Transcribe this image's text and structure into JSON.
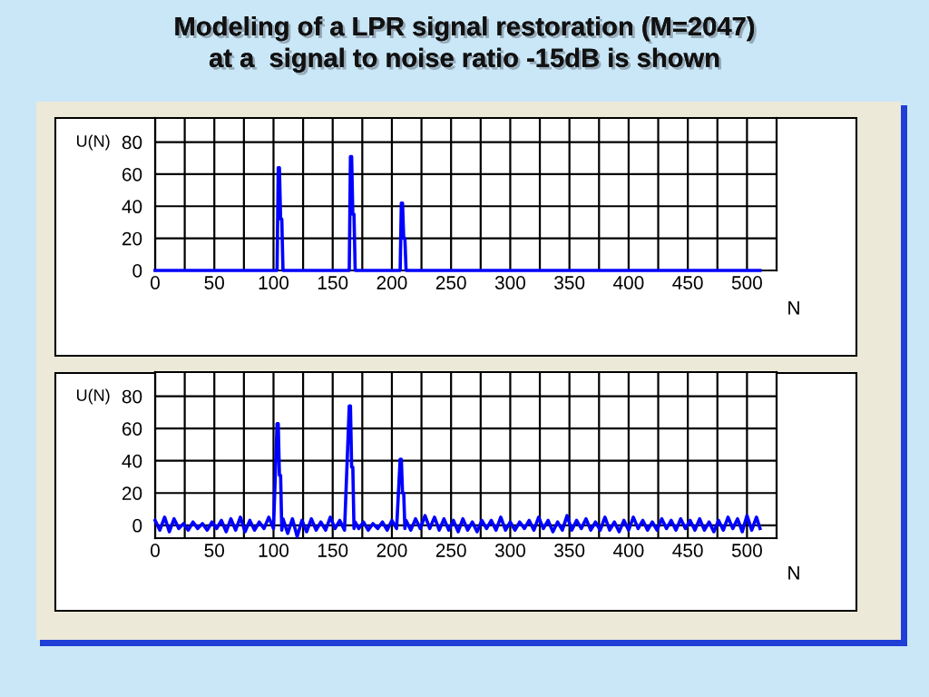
{
  "chart_data": [
    {
      "type": "line",
      "title": "Modeling of a LPR signal restoration (M=2047)\nat a  signal to noise ratio -15dB is shown",
      "xlabel": "N",
      "ylabel": "U(N)",
      "grid": true,
      "line_style": "solid",
      "xlim": [
        0,
        525
      ],
      "xticks": [
        0,
        {
          "value": 25,
          "label": null
        },
        50,
        {
          "value": 75,
          "label": null
        },
        100,
        {
          "value": 125,
          "label": null
        },
        150,
        {
          "value": 175,
          "label": null
        },
        200,
        {
          "value": 225,
          "label": null
        },
        250,
        {
          "value": 275,
          "label": null
        },
        300,
        {
          "value": 325,
          "label": null
        },
        350,
        {
          "value": 375,
          "label": null
        },
        400,
        {
          "value": 425,
          "label": null
        },
        450,
        {
          "value": 475,
          "label": null
        },
        500
      ],
      "ylim": [
        0,
        95
      ],
      "yticks": [
        0,
        20,
        40,
        60,
        80
      ],
      "series": [
        {
          "color": "#0000ff",
          "x": [
            0,
            103,
            104,
            105,
            106,
            107,
            108,
            164,
            165,
            166,
            167,
            168,
            169,
            207,
            208,
            209,
            210,
            211,
            212,
            511
          ],
          "values": [
            0,
            0,
            64,
            64,
            32,
            32,
            0,
            0,
            71,
            71,
            35,
            35,
            0,
            0,
            42,
            42,
            20,
            20,
            0,
            0
          ]
        }
      ]
    },
    {
      "type": "line",
      "xlabel": "N",
      "ylabel": "U(N)",
      "grid": true,
      "line_style": "solid",
      "xlim": [
        0,
        525
      ],
      "xticks": [
        0,
        {
          "value": 25,
          "label": null
        },
        50,
        {
          "value": 75,
          "label": null
        },
        100,
        {
          "value": 125,
          "label": null
        },
        150,
        {
          "value": 175,
          "label": null
        },
        200,
        {
          "value": 225,
          "label": null
        },
        250,
        {
          "value": 275,
          "label": null
        },
        300,
        {
          "value": 325,
          "label": null
        },
        350,
        {
          "value": 375,
          "label": null
        },
        400,
        {
          "value": 425,
          "label": null
        },
        450,
        {
          "value": 475,
          "label": null
        },
        500
      ],
      "ylim": [
        -8,
        95
      ],
      "yticks": [
        0,
        20,
        40,
        60,
        80
      ],
      "series": [
        {
          "color": "#0000ff",
          "x": [
            0,
            4,
            8,
            12,
            16,
            20,
            24,
            28,
            32,
            36,
            40,
            44,
            48,
            52,
            56,
            60,
            64,
            68,
            72,
            76,
            80,
            84,
            88,
            92,
            96,
            100,
            103,
            104,
            105,
            106,
            107,
            108,
            112,
            116,
            120,
            124,
            128,
            132,
            136,
            140,
            144,
            148,
            152,
            156,
            160,
            164,
            165,
            166,
            167,
            168,
            169,
            172,
            176,
            180,
            184,
            188,
            192,
            196,
            200,
            204,
            207,
            208,
            209,
            210,
            211,
            212,
            216,
            220,
            224,
            228,
            232,
            236,
            240,
            244,
            248,
            252,
            256,
            260,
            264,
            268,
            272,
            276,
            280,
            284,
            288,
            292,
            296,
            300,
            304,
            308,
            312,
            316,
            320,
            324,
            328,
            332,
            336,
            340,
            344,
            348,
            352,
            356,
            360,
            364,
            368,
            372,
            376,
            380,
            384,
            388,
            392,
            396,
            400,
            404,
            408,
            412,
            416,
            420,
            424,
            428,
            432,
            436,
            440,
            444,
            448,
            452,
            456,
            460,
            464,
            468,
            472,
            476,
            480,
            484,
            488,
            492,
            496,
            500,
            504,
            508,
            511
          ],
          "values": [
            3,
            -3,
            5,
            -4,
            4,
            -2,
            1,
            -3,
            2,
            -2,
            1,
            -3,
            2,
            -2,
            3,
            -4,
            4,
            -3,
            5,
            -4,
            3,
            -3,
            2,
            -2,
            5,
            -2,
            63,
            63,
            31,
            31,
            -3,
            4,
            -5,
            4,
            -7,
            3,
            -4,
            4,
            -3,
            2,
            -3,
            5,
            -2,
            3,
            -3,
            74,
            74,
            36,
            36,
            -2,
            2,
            -2,
            2,
            -3,
            1,
            -2,
            2,
            -3,
            3,
            -2,
            41,
            41,
            20,
            20,
            -2,
            3,
            -3,
            4,
            -2,
            6,
            -2,
            5,
            -3,
            4,
            -3,
            3,
            -4,
            4,
            -3,
            2,
            -4,
            3,
            -2,
            3,
            -3,
            5,
            -3,
            2,
            -3,
            2,
            -2,
            3,
            -3,
            5,
            -2,
            3,
            -4,
            2,
            -3,
            6,
            -3,
            3,
            -2,
            4,
            -3,
            2,
            -3,
            5,
            -3,
            2,
            -4,
            3,
            -3,
            5,
            -2,
            3,
            -3,
            2,
            -3,
            4,
            -2,
            3,
            -3,
            4,
            -2,
            3,
            -3,
            4,
            -3,
            2,
            -4,
            3,
            -3,
            5,
            -2,
            4,
            -4,
            6,
            -3,
            5,
            -2
          ]
        }
      ]
    }
  ]
}
